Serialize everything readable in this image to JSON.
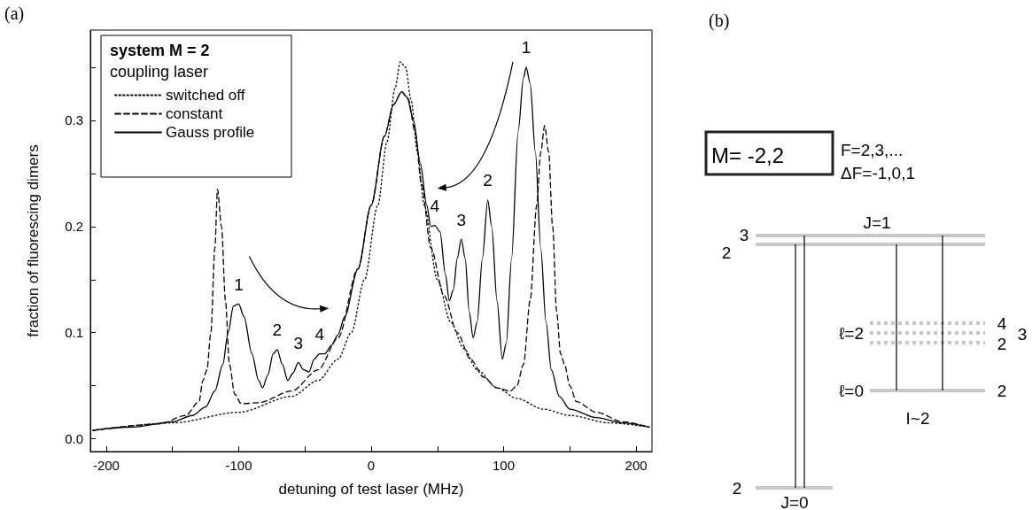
{
  "chart_data": [
    {
      "type": "line",
      "title": "(a)",
      "xlabel": "detuning of test laser (MHz)",
      "ylabel": "fraction of fluorescing dimers",
      "legend_title": "system M = 2\ncoupling laser",
      "legend": "top left",
      "grid": false,
      "marker": "none",
      "xlim": [
        -212,
        212
      ],
      "xticks": [
        -200,
        {
          "value": -150,
          "label": null
        },
        -100,
        {
          "value": -50,
          "label": null
        },
        0,
        {
          "value": 50,
          "label": null
        },
        100,
        {
          "value": 150,
          "label": null
        },
        200
      ],
      "ylim": [
        -0.012,
        0.385
      ],
      "yticks": [
        {
          "value": 0,
          "label": "0.0"
        },
        {
          "value": 0.05,
          "label": null
        },
        0.1,
        {
          "value": 0.15,
          "label": null
        },
        0.2,
        {
          "value": 0.25,
          "label": null
        },
        0.3,
        {
          "value": 0.35,
          "label": null
        }
      ],
      "series": [
        {
          "name": "switched off",
          "color": "#000000",
          "line_style": "dotted",
          "x": [
            -210,
            -150,
            -100,
            -60,
            -40,
            -25,
            -15,
            -5,
            5,
            12,
            18,
            22,
            26,
            30,
            35,
            40,
            50,
            60,
            70,
            80,
            95,
            110,
            130,
            150,
            180,
            210
          ],
          "values": [
            0.008,
            0.015,
            0.025,
            0.04,
            0.055,
            0.075,
            0.1,
            0.15,
            0.22,
            0.28,
            0.33,
            0.355,
            0.35,
            0.32,
            0.27,
            0.22,
            0.15,
            0.11,
            0.085,
            0.065,
            0.048,
            0.038,
            0.028,
            0.022,
            0.015,
            0.011
          ]
        },
        {
          "name": "constant",
          "color": "#000000",
          "line_style": "dashed",
          "x": [
            -210,
            -160,
            -140,
            -130,
            -127,
            -124,
            -121,
            -118,
            -116,
            -113,
            -110,
            -107,
            -103,
            -98,
            -85,
            -60,
            -40,
            -25,
            -10,
            0,
            10,
            17,
            23,
            28,
            33,
            38,
            45,
            55,
            65,
            75,
            85,
            95,
            105,
            110,
            115,
            120,
            125,
            128,
            131,
            134,
            137,
            140,
            143,
            146,
            150,
            155,
            170,
            190,
            210
          ],
          "values": [
            0.008,
            0.014,
            0.022,
            0.035,
            0.055,
            0.065,
            0.1,
            0.18,
            0.235,
            0.2,
            0.13,
            0.07,
            0.042,
            0.033,
            0.034,
            0.045,
            0.065,
            0.095,
            0.16,
            0.22,
            0.285,
            0.315,
            0.327,
            0.32,
            0.29,
            0.24,
            0.18,
            0.135,
            0.1,
            0.075,
            0.058,
            0.048,
            0.045,
            0.05,
            0.07,
            0.13,
            0.22,
            0.27,
            0.295,
            0.27,
            0.2,
            0.12,
            0.08,
            0.07,
            0.05,
            0.035,
            0.025,
            0.016,
            0.011
          ]
        },
        {
          "name": "Gauss profile",
          "color": "#000000",
          "line_style": "solid",
          "x": [
            -210,
            -180,
            -150,
            -135,
            -125,
            -118,
            -112,
            -108,
            -104,
            -100,
            -96,
            -90,
            -85,
            -82,
            -78,
            -74,
            -71,
            -67,
            -63,
            -59,
            -55,
            -51,
            -47,
            -43,
            -39,
            -35,
            -30,
            -25,
            -20,
            -10,
            0,
            10,
            17,
            23,
            27,
            32,
            37,
            42,
            45,
            48,
            52,
            56,
            59,
            62,
            65,
            68,
            71,
            74,
            77,
            80,
            84,
            88,
            91,
            95,
            99,
            102,
            106,
            111,
            115,
            117,
            120,
            124,
            128,
            132,
            136,
            142,
            150,
            170,
            190,
            210
          ],
          "values": [
            0.008,
            0.011,
            0.016,
            0.022,
            0.03,
            0.045,
            0.07,
            0.1,
            0.125,
            0.127,
            0.115,
            0.08,
            0.055,
            0.048,
            0.06,
            0.08,
            0.084,
            0.07,
            0.055,
            0.062,
            0.072,
            0.065,
            0.063,
            0.075,
            0.08,
            0.08,
            0.088,
            0.098,
            0.115,
            0.16,
            0.22,
            0.285,
            0.315,
            0.327,
            0.322,
            0.3,
            0.26,
            0.22,
            0.2,
            0.201,
            0.195,
            0.155,
            0.13,
            0.14,
            0.17,
            0.188,
            0.17,
            0.12,
            0.095,
            0.11,
            0.17,
            0.225,
            0.2,
            0.13,
            0.075,
            0.09,
            0.17,
            0.29,
            0.34,
            0.35,
            0.335,
            0.27,
            0.18,
            0.11,
            0.065,
            0.04,
            0.028,
            0.02,
            0.015,
            0.011
          ]
        }
      ],
      "annotations": [
        {
          "text": "1",
          "x": -100,
          "y": 0.127
        },
        {
          "text": "2",
          "x": -71,
          "y": 0.084
        },
        {
          "text": "3",
          "x": -55,
          "y": 0.072
        },
        {
          "text": "4",
          "x": -39,
          "y": 0.08
        },
        {
          "text": "1",
          "x": 117,
          "y": 0.35
        },
        {
          "text": "2",
          "x": 88,
          "y": 0.225
        },
        {
          "text": "3",
          "x": 68,
          "y": 0.188
        },
        {
          "text": "4",
          "x": 48,
          "y": 0.201
        }
      ]
    },
    {
      "type": "other",
      "title": "(b)",
      "annotations": [
        "M= -2,2",
        "F=2,3,...",
        "ΔF=-1,0,1",
        "J=1",
        "3",
        "2",
        "ℓ=2",
        "4",
        "3",
        "2",
        "ℓ=0",
        "2",
        "I~2",
        "2",
        "J=0"
      ]
    }
  ]
}
